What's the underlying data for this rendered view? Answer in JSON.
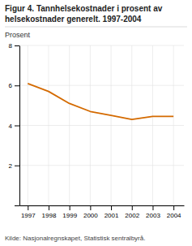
{
  "chart_data": {
    "type": "line",
    "title": [
      "Figur 4. Tannhelsekostnader i prosent av",
      "helsekostnader generelt. 1997-2004"
    ],
    "ylabel": "Prosent",
    "source": "Kilde: Nasjonalregnskapet, Statistisk sentralbyrå.",
    "x": [
      1997,
      1998,
      1999,
      2000,
      2001,
      2002,
      2003,
      2004
    ],
    "values": [
      6.1,
      5.7,
      5.1,
      4.7,
      4.5,
      4.3,
      4.45,
      4.45
    ],
    "color": "#d46a00",
    "xlim": [
      1996.6,
      2004.5
    ],
    "xticks": [
      1997,
      1998,
      1999,
      2000,
      2001,
      2002,
      2003,
      2004
    ],
    "ylim": [
      0,
      8
    ],
    "yticks": [
      {
        "value": 0,
        "label": null
      },
      2,
      4,
      6,
      8
    ],
    "grid": true
  }
}
